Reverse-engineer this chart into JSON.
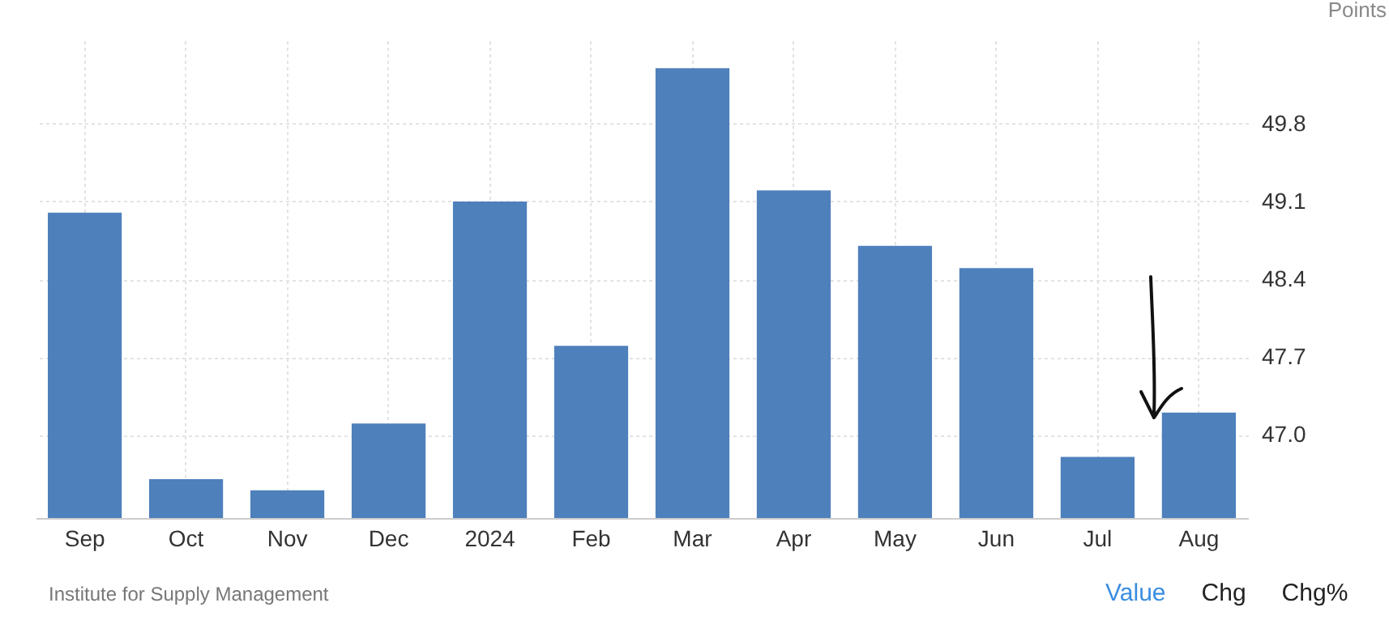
{
  "chart_data": {
    "type": "bar",
    "ylabel": "Points",
    "categories": [
      "Sep",
      "Oct",
      "Nov",
      "Dec",
      "2024",
      "Feb",
      "Mar",
      "Apr",
      "May",
      "Jun",
      "Jul",
      "Aug"
    ],
    "values": [
      49.0,
      46.6,
      46.5,
      47.1,
      49.1,
      47.8,
      50.3,
      49.2,
      48.7,
      48.5,
      46.8,
      47.2
    ],
    "color": "#4e80bc",
    "ylim": [
      46.25,
      50.55
    ],
    "yticks": [
      {
        "value": 47,
        "label": "47.0"
      },
      47.7,
      48.4,
      49.1,
      49.8
    ],
    "grid": true,
    "annotations": [
      "Institute for Supply Management",
      "Value",
      "Chg",
      "Chg%"
    ]
  }
}
